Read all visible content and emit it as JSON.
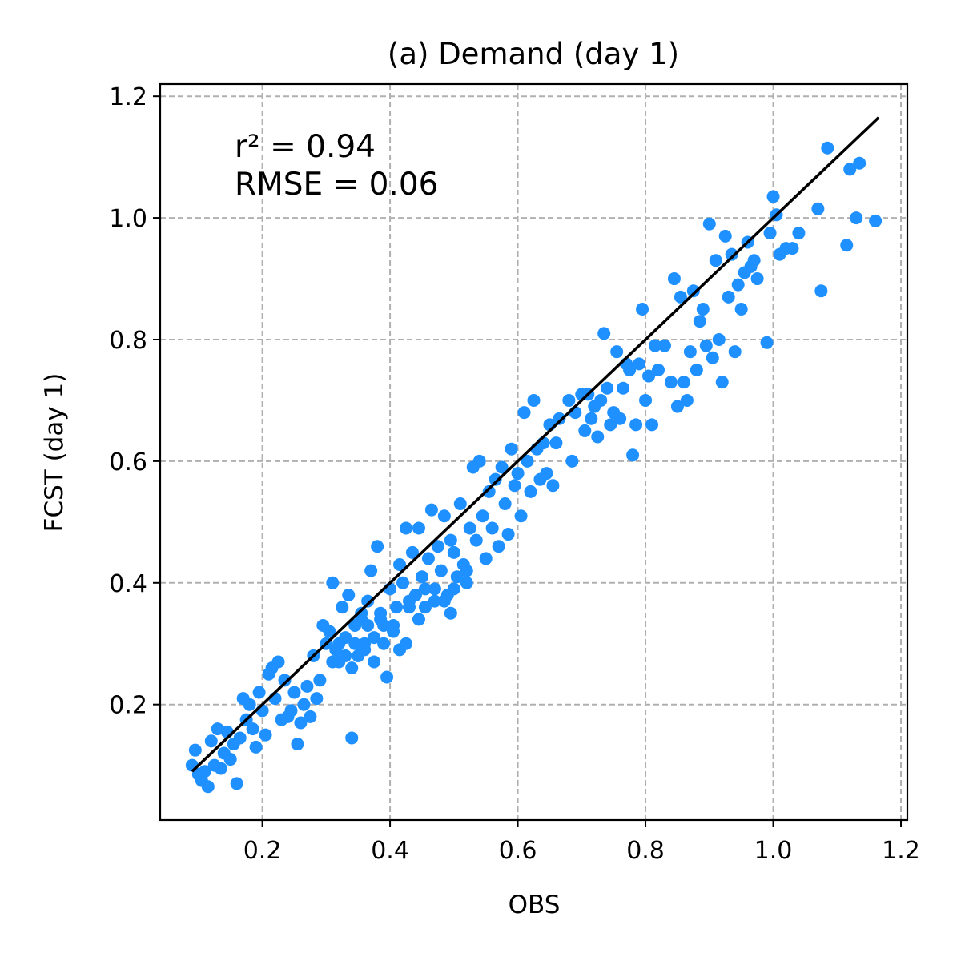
{
  "chart_data": {
    "type": "scatter",
    "title": "(a) Demand (day 1)",
    "xlabel": "OBS",
    "ylabel": "FCST (day 1)",
    "xlim": [
      0.04,
      1.21
    ],
    "ylim": [
      0.01,
      1.22
    ],
    "xticks": [
      0.2,
      0.4,
      0.6,
      0.8,
      1.0,
      1.2
    ],
    "yticks": [
      0.2,
      0.4,
      0.6,
      0.8,
      1.0,
      1.2
    ],
    "xtick_labels": [
      "0.2",
      "0.4",
      "0.6",
      "0.8",
      "1.0",
      "1.2"
    ],
    "ytick_labels": [
      "0.2",
      "0.4",
      "0.6",
      "0.8",
      "1.0",
      "1.2"
    ],
    "grid": true,
    "annotations": [
      "r² = 0.94",
      "RMSE = 0.06"
    ],
    "point_color": "#1e90ff",
    "line_color": "#000000",
    "fit_line": {
      "x": [
        0.09,
        1.165
      ],
      "y": [
        0.09,
        1.165
      ]
    },
    "points": [
      [
        0.09,
        0.1
      ],
      [
        0.095,
        0.125
      ],
      [
        0.1,
        0.085
      ],
      [
        0.105,
        0.075
      ],
      [
        0.11,
        0.09
      ],
      [
        0.115,
        0.065
      ],
      [
        0.12,
        0.14
      ],
      [
        0.125,
        0.1
      ],
      [
        0.13,
        0.16
      ],
      [
        0.135,
        0.095
      ],
      [
        0.14,
        0.12
      ],
      [
        0.145,
        0.155
      ],
      [
        0.15,
        0.11
      ],
      [
        0.155,
        0.135
      ],
      [
        0.16,
        0.07
      ],
      [
        0.165,
        0.145
      ],
      [
        0.17,
        0.21
      ],
      [
        0.175,
        0.175
      ],
      [
        0.18,
        0.2
      ],
      [
        0.185,
        0.16
      ],
      [
        0.19,
        0.13
      ],
      [
        0.195,
        0.22
      ],
      [
        0.2,
        0.19
      ],
      [
        0.205,
        0.15
      ],
      [
        0.21,
        0.25
      ],
      [
        0.215,
        0.26
      ],
      [
        0.22,
        0.21
      ],
      [
        0.225,
        0.27
      ],
      [
        0.23,
        0.175
      ],
      [
        0.235,
        0.24
      ],
      [
        0.24,
        0.18
      ],
      [
        0.245,
        0.19
      ],
      [
        0.25,
        0.22
      ],
      [
        0.255,
        0.135
      ],
      [
        0.26,
        0.17
      ],
      [
        0.265,
        0.2
      ],
      [
        0.27,
        0.23
      ],
      [
        0.275,
        0.18
      ],
      [
        0.28,
        0.28
      ],
      [
        0.285,
        0.21
      ],
      [
        0.29,
        0.24
      ],
      [
        0.295,
        0.33
      ],
      [
        0.3,
        0.3
      ],
      [
        0.305,
        0.32
      ],
      [
        0.31,
        0.4
      ],
      [
        0.315,
        0.29
      ],
      [
        0.32,
        0.27
      ],
      [
        0.325,
        0.36
      ],
      [
        0.33,
        0.31
      ],
      [
        0.335,
        0.38
      ],
      [
        0.34,
        0.145
      ],
      [
        0.345,
        0.33
      ],
      [
        0.35,
        0.28
      ],
      [
        0.355,
        0.35
      ],
      [
        0.36,
        0.3
      ],
      [
        0.365,
        0.37
      ],
      [
        0.37,
        0.42
      ],
      [
        0.375,
        0.31
      ],
      [
        0.38,
        0.46
      ],
      [
        0.385,
        0.34
      ],
      [
        0.39,
        0.3
      ],
      [
        0.395,
        0.245
      ],
      [
        0.4,
        0.39
      ],
      [
        0.405,
        0.33
      ],
      [
        0.41,
        0.36
      ],
      [
        0.415,
        0.43
      ],
      [
        0.42,
        0.4
      ],
      [
        0.425,
        0.49
      ],
      [
        0.43,
        0.37
      ],
      [
        0.435,
        0.45
      ],
      [
        0.44,
        0.38
      ],
      [
        0.445,
        0.49
      ],
      [
        0.45,
        0.41
      ],
      [
        0.455,
        0.36
      ],
      [
        0.46,
        0.44
      ],
      [
        0.465,
        0.52
      ],
      [
        0.47,
        0.39
      ],
      [
        0.475,
        0.46
      ],
      [
        0.48,
        0.42
      ],
      [
        0.485,
        0.51
      ],
      [
        0.49,
        0.38
      ],
      [
        0.495,
        0.47
      ],
      [
        0.5,
        0.45
      ],
      [
        0.505,
        0.41
      ],
      [
        0.51,
        0.53
      ],
      [
        0.515,
        0.43
      ],
      [
        0.52,
        0.4
      ],
      [
        0.525,
        0.49
      ],
      [
        0.53,
        0.59
      ],
      [
        0.535,
        0.47
      ],
      [
        0.54,
        0.6
      ],
      [
        0.545,
        0.51
      ],
      [
        0.55,
        0.44
      ],
      [
        0.555,
        0.55
      ],
      [
        0.56,
        0.49
      ],
      [
        0.565,
        0.57
      ],
      [
        0.57,
        0.46
      ],
      [
        0.575,
        0.59
      ],
      [
        0.58,
        0.53
      ],
      [
        0.585,
        0.48
      ],
      [
        0.59,
        0.62
      ],
      [
        0.595,
        0.56
      ],
      [
        0.6,
        0.58
      ],
      [
        0.605,
        0.51
      ],
      [
        0.61,
        0.68
      ],
      [
        0.615,
        0.6
      ],
      [
        0.62,
        0.55
      ],
      [
        0.625,
        0.7
      ],
      [
        0.63,
        0.62
      ],
      [
        0.635,
        0.57
      ],
      [
        0.64,
        0.63
      ],
      [
        0.645,
        0.58
      ],
      [
        0.65,
        0.66
      ],
      [
        0.655,
        0.56
      ],
      [
        0.66,
        0.63
      ],
      [
        0.665,
        0.67
      ],
      [
        0.68,
        0.7
      ],
      [
        0.685,
        0.6
      ],
      [
        0.69,
        0.68
      ],
      [
        0.7,
        0.71
      ],
      [
        0.705,
        0.65
      ],
      [
        0.71,
        0.71
      ],
      [
        0.715,
        0.67
      ],
      [
        0.72,
        0.69
      ],
      [
        0.725,
        0.64
      ],
      [
        0.73,
        0.7
      ],
      [
        0.735,
        0.81
      ],
      [
        0.74,
        0.72
      ],
      [
        0.745,
        0.66
      ],
      [
        0.75,
        0.68
      ],
      [
        0.755,
        0.78
      ],
      [
        0.76,
        0.67
      ],
      [
        0.765,
        0.72
      ],
      [
        0.77,
        0.76
      ],
      [
        0.775,
        0.75
      ],
      [
        0.78,
        0.61
      ],
      [
        0.785,
        0.66
      ],
      [
        0.79,
        0.76
      ],
      [
        0.795,
        0.85
      ],
      [
        0.8,
        0.7
      ],
      [
        0.805,
        0.74
      ],
      [
        0.81,
        0.66
      ],
      [
        0.815,
        0.79
      ],
      [
        0.82,
        0.75
      ],
      [
        0.83,
        0.79
      ],
      [
        0.84,
        0.73
      ],
      [
        0.845,
        0.9
      ],
      [
        0.85,
        0.69
      ],
      [
        0.855,
        0.87
      ],
      [
        0.86,
        0.73
      ],
      [
        0.865,
        0.7
      ],
      [
        0.87,
        0.78
      ],
      [
        0.875,
        0.88
      ],
      [
        0.88,
        0.75
      ],
      [
        0.885,
        0.83
      ],
      [
        0.89,
        0.85
      ],
      [
        0.895,
        0.79
      ],
      [
        0.9,
        0.99
      ],
      [
        0.905,
        0.77
      ],
      [
        0.91,
        0.93
      ],
      [
        0.915,
        0.8
      ],
      [
        0.92,
        0.73
      ],
      [
        0.925,
        0.97
      ],
      [
        0.93,
        0.87
      ],
      [
        0.935,
        0.94
      ],
      [
        0.94,
        0.78
      ],
      [
        0.945,
        0.89
      ],
      [
        0.95,
        0.85
      ],
      [
        0.955,
        0.91
      ],
      [
        0.96,
        0.96
      ],
      [
        0.965,
        0.92
      ],
      [
        0.97,
        0.93
      ],
      [
        0.975,
        0.9
      ],
      [
        0.99,
        0.795
      ],
      [
        0.995,
        0.975
      ],
      [
        1.0,
        1.035
      ],
      [
        1.005,
        1.005
      ],
      [
        1.01,
        0.94
      ],
      [
        1.02,
        0.95
      ],
      [
        1.03,
        0.95
      ],
      [
        1.04,
        0.975
      ],
      [
        1.07,
        1.015
      ],
      [
        1.075,
        0.88
      ],
      [
        1.085,
        1.115
      ],
      [
        1.115,
        0.955
      ],
      [
        1.12,
        1.08
      ],
      [
        1.13,
        1.0
      ],
      [
        1.135,
        1.09
      ],
      [
        1.16,
        0.995
      ],
      [
        0.34,
        0.26
      ],
      [
        0.355,
        0.34
      ],
      [
        0.365,
        0.33
      ],
      [
        0.385,
        0.35
      ],
      [
        0.405,
        0.32
      ],
      [
        0.43,
        0.36
      ],
      [
        0.445,
        0.34
      ],
      [
        0.47,
        0.37
      ],
      [
        0.5,
        0.39
      ],
      [
        0.52,
        0.42
      ],
      [
        0.31,
        0.27
      ],
      [
        0.32,
        0.3
      ],
      [
        0.33,
        0.28
      ],
      [
        0.345,
        0.3
      ],
      [
        0.36,
        0.29
      ],
      [
        0.375,
        0.27
      ],
      [
        0.39,
        0.33
      ],
      [
        0.415,
        0.29
      ],
      [
        0.425,
        0.3
      ],
      [
        0.455,
        0.39
      ],
      [
        0.485,
        0.37
      ],
      [
        0.495,
        0.35
      ]
    ]
  }
}
